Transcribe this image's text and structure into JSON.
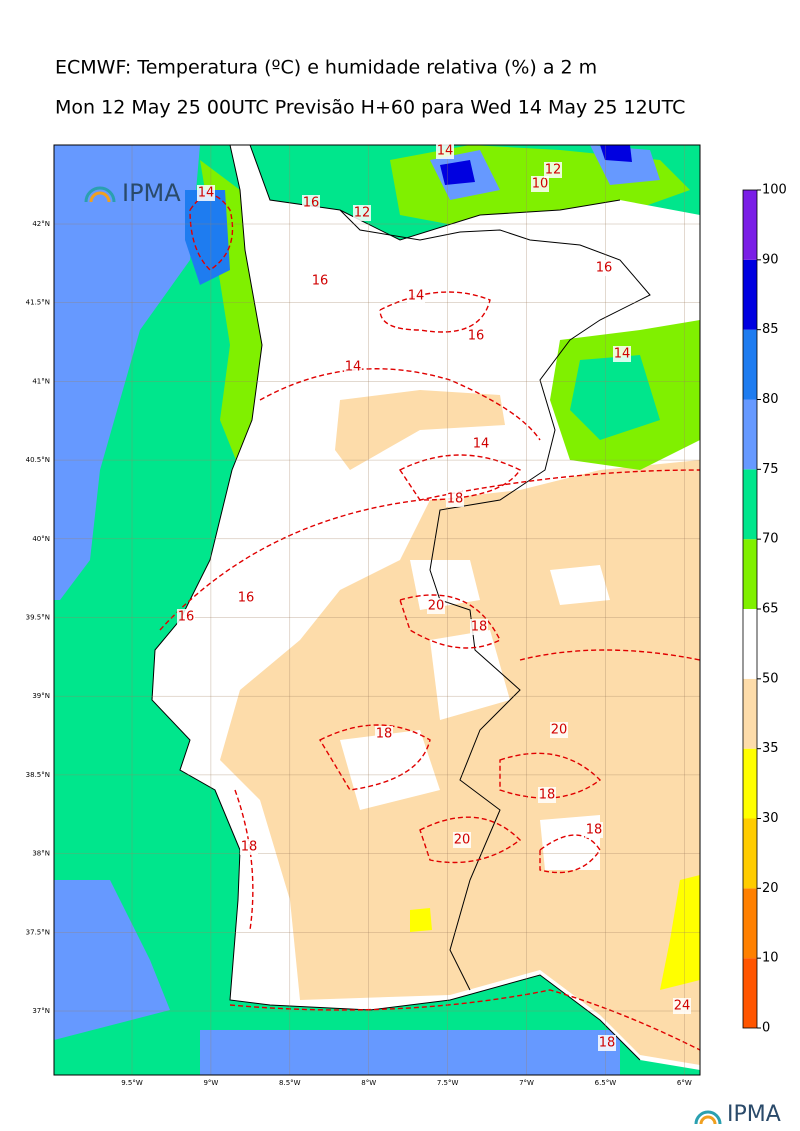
{
  "header": {
    "title": "ECMWF: Temperatura (ºC) e humidade relativa (%) a 2 m",
    "subtitle": "Mon 12 May 25 00UTC Previsão H+60 para Wed 14 May 25 12UTC"
  },
  "logos": [
    "IPMA",
    "IPMA"
  ],
  "longitude_labels": [
    "9.5°W",
    "9°W",
    "8.5°W",
    "8°W",
    "7.5°W",
    "7°W",
    "6.5°W",
    "6°W"
  ],
  "latitude_labels": [
    "42°N",
    "41.5°N",
    "41°N",
    "40.5°N",
    "40°N",
    "39.5°N",
    "39°N",
    "38.5°N",
    "38°N",
    "37.5°N",
    "37°N"
  ],
  "colorbar": {
    "ticks": [
      0,
      10,
      20,
      30,
      35,
      50,
      65,
      70,
      75,
      80,
      85,
      90,
      100
    ],
    "colors": [
      "#ff5500",
      "#ff8000",
      "#ffcc00",
      "#ffff00",
      "#fddcaa",
      "#ffffff",
      "#80f000",
      "#00e68c",
      "#6699ff",
      "#1e7cf0",
      "#0000e0",
      "#7a1ee6"
    ]
  },
  "contour_labels": [
    "14",
    "14",
    "10",
    "12",
    "12",
    "16",
    "16",
    "16",
    "14",
    "16",
    "14",
    "14",
    "14",
    "18",
    "16",
    "16",
    "20",
    "18",
    "18",
    "20",
    "18",
    "18",
    "20",
    "18",
    "24",
    "18"
  ]
}
